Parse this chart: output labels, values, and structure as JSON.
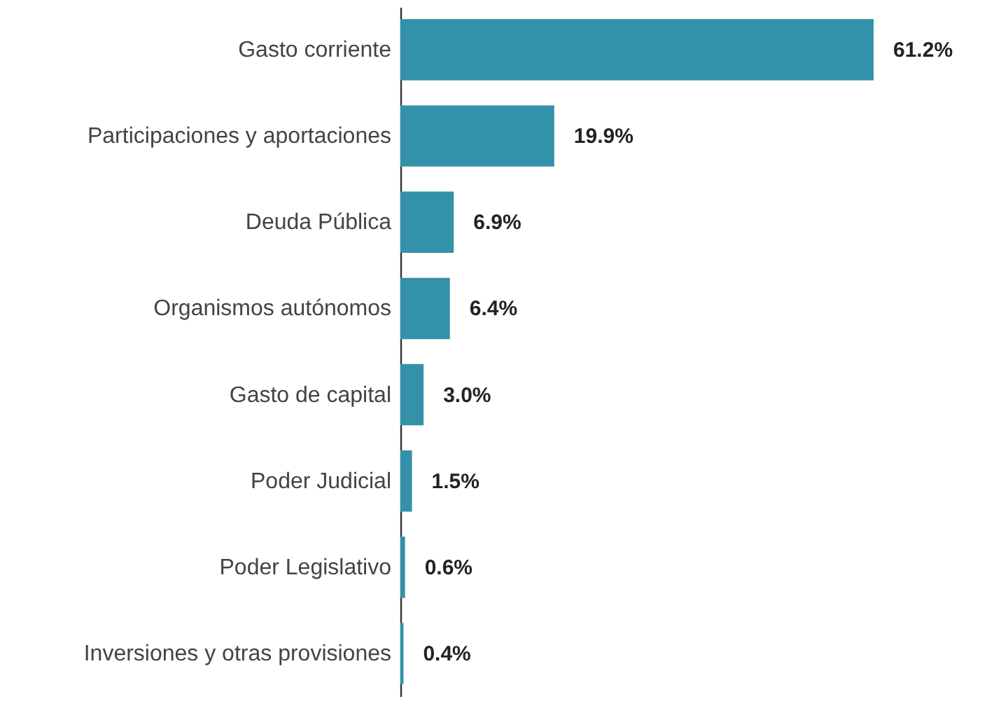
{
  "chart_data": {
    "type": "bar",
    "orientation": "horizontal",
    "categories": [
      "Gasto corriente",
      "Participaciones y aportaciones",
      "Deuda Pública",
      "Organismos autónomos",
      "Gasto de capital",
      "Poder Judicial",
      "Poder Legislativo",
      "Inversiones y otras provisiones"
    ],
    "values": [
      61.2,
      19.9,
      6.9,
      6.4,
      3.0,
      1.5,
      0.6,
      0.4
    ],
    "value_labels": [
      "61.2%",
      "19.9%",
      "6.9%",
      "6.4%",
      "3.0%",
      "1.5%",
      "0.6%",
      "0.4%"
    ],
    "color": "#3391a9"
  }
}
